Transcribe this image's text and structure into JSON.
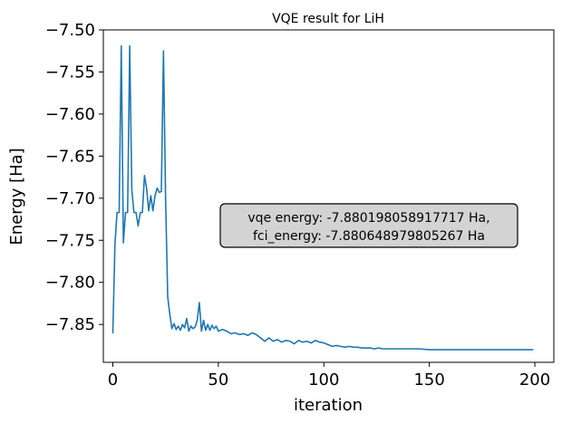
{
  "chart_data": {
    "type": "line",
    "title": "VQE result for LiH",
    "xlabel": "iteration",
    "ylabel": "Energy [Ha]",
    "xlim": [
      -4.5,
      209
    ],
    "ylim": [
      -7.895,
      -7.5
    ],
    "x_ticks": [
      0,
      50,
      100,
      150,
      200
    ],
    "y_ticks": [
      -7.5,
      -7.55,
      -7.6,
      -7.65,
      -7.7,
      -7.75,
      -7.8,
      -7.85
    ],
    "x_tick_labels": [
      "0",
      "50",
      "100",
      "150",
      "200"
    ],
    "y_tick_labels": [
      "−7.50",
      "−7.55",
      "−7.60",
      "−7.65",
      "−7.70",
      "−7.75",
      "−7.80",
      "−7.85"
    ],
    "grid": false,
    "series_color": "#1f77b4",
    "annotation": {
      "line1": "vqe energy: -7.880198058917717 Ha,",
      "line2": "fci_energy: -7.880648979805267 Ha"
    },
    "series": [
      {
        "name": "",
        "x": [
          0,
          1,
          2,
          3,
          4,
          5,
          6,
          7,
          8,
          9,
          10,
          11,
          12,
          13,
          14,
          15,
          16,
          17,
          18,
          19,
          20,
          21,
          22,
          23,
          24,
          25,
          26,
          27,
          28,
          29,
          30,
          31,
          32,
          33,
          34,
          35,
          36,
          37,
          38,
          39,
          40,
          41,
          42,
          43,
          44,
          45,
          46,
          47,
          48,
          49,
          50,
          52,
          54,
          56,
          58,
          60,
          62,
          64,
          66,
          68,
          70,
          72,
          74,
          76,
          78,
          80,
          82,
          84,
          86,
          88,
          90,
          92,
          94,
          96,
          98,
          100,
          102,
          104,
          106,
          108,
          110,
          112,
          114,
          116,
          118,
          120,
          122,
          124,
          126,
          128,
          130,
          135,
          140,
          145,
          150,
          155,
          160,
          165,
          170,
          175,
          180,
          185,
          190,
          195,
          199
        ],
        "values": [
          -7.86,
          -7.755,
          -7.717,
          -7.717,
          -7.519,
          -7.753,
          -7.717,
          -7.717,
          -7.519,
          -7.69,
          -7.717,
          -7.717,
          -7.733,
          -7.717,
          -7.717,
          -7.673,
          -7.688,
          -7.715,
          -7.697,
          -7.715,
          -7.697,
          -7.688,
          -7.693,
          -7.692,
          -7.525,
          -7.7,
          -7.817,
          -7.838,
          -7.855,
          -7.849,
          -7.856,
          -7.852,
          -7.857,
          -7.85,
          -7.854,
          -7.843,
          -7.858,
          -7.852,
          -7.855,
          -7.853,
          -7.845,
          -7.824,
          -7.858,
          -7.845,
          -7.857,
          -7.85,
          -7.857,
          -7.851,
          -7.855,
          -7.852,
          -7.858,
          -7.856,
          -7.858,
          -7.861,
          -7.86,
          -7.862,
          -7.861,
          -7.863,
          -7.86,
          -7.862,
          -7.866,
          -7.87,
          -7.866,
          -7.87,
          -7.868,
          -7.871,
          -7.869,
          -7.87,
          -7.873,
          -7.869,
          -7.871,
          -7.87,
          -7.872,
          -7.869,
          -7.871,
          -7.872,
          -7.874,
          -7.876,
          -7.875,
          -7.876,
          -7.877,
          -7.876,
          -7.877,
          -7.877,
          -7.878,
          -7.878,
          -7.878,
          -7.879,
          -7.878,
          -7.879,
          -7.879,
          -7.879,
          -7.879,
          -7.879,
          -7.88,
          -7.88,
          -7.88,
          -7.88,
          -7.88,
          -7.88,
          -7.88,
          -7.88,
          -7.88,
          -7.88,
          -7.88
        ]
      }
    ]
  }
}
